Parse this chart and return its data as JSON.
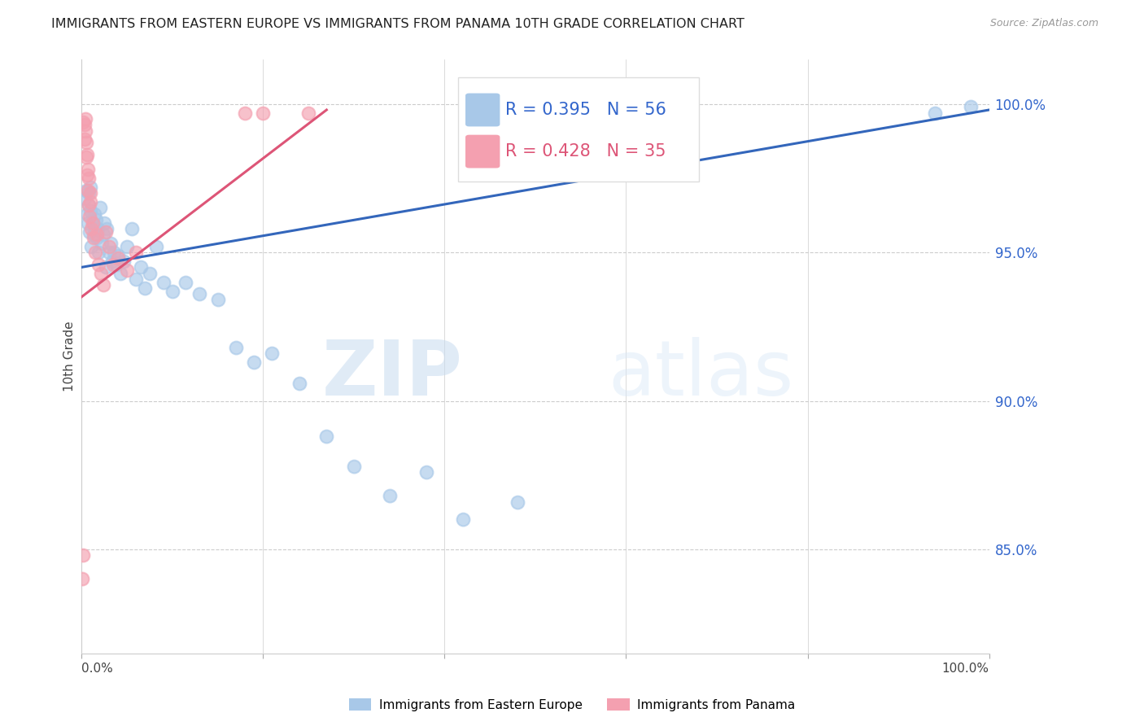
{
  "title": "IMMIGRANTS FROM EASTERN EUROPE VS IMMIGRANTS FROM PANAMA 10TH GRADE CORRELATION CHART",
  "source": "Source: ZipAtlas.com",
  "ylabel": "10th Grade",
  "legend_blue_r": "0.395",
  "legend_blue_n": "56",
  "legend_pink_r": "0.428",
  "legend_pink_n": "35",
  "legend_blue_label": "Immigrants from Eastern Europe",
  "legend_pink_label": "Immigrants from Panama",
  "ytick_labels": [
    "85.0%",
    "90.0%",
    "95.0%",
    "100.0%"
  ],
  "ytick_values": [
    0.85,
    0.9,
    0.95,
    1.0
  ],
  "xlim": [
    0.0,
    1.0
  ],
  "ylim": [
    0.815,
    1.015
  ],
  "blue_color": "#A8C8E8",
  "pink_color": "#F4A0B0",
  "blue_line_color": "#3366BB",
  "pink_line_color": "#DD5577",
  "grid_color": "#CCCCCC",
  "axis_label_color": "#3366CC",
  "title_color": "#222222",
  "watermark_zip": "ZIP",
  "watermark_atlas": "atlas",
  "blue_x": [
    0.003,
    0.005,
    0.006,
    0.007,
    0.008,
    0.008,
    0.009,
    0.01,
    0.01,
    0.011,
    0.012,
    0.013,
    0.014,
    0.015,
    0.016,
    0.017,
    0.018,
    0.019,
    0.02,
    0.022,
    0.024,
    0.025,
    0.027,
    0.028,
    0.03,
    0.032,
    0.034,
    0.036,
    0.038,
    0.04,
    0.043,
    0.046,
    0.05,
    0.055,
    0.06,
    0.065,
    0.07,
    0.075,
    0.082,
    0.09,
    0.1,
    0.115,
    0.13,
    0.15,
    0.17,
    0.19,
    0.21,
    0.24,
    0.27,
    0.3,
    0.34,
    0.38,
    0.42,
    0.48,
    0.94,
    0.98
  ],
  "blue_y": [
    0.968,
    0.971,
    0.963,
    0.96,
    0.966,
    0.97,
    0.957,
    0.964,
    0.972,
    0.952,
    0.96,
    0.956,
    0.963,
    0.958,
    0.961,
    0.955,
    0.958,
    0.95,
    0.965,
    0.953,
    0.956,
    0.96,
    0.945,
    0.958,
    0.95,
    0.953,
    0.947,
    0.95,
    0.946,
    0.949,
    0.943,
    0.947,
    0.952,
    0.958,
    0.941,
    0.945,
    0.938,
    0.943,
    0.952,
    0.94,
    0.937,
    0.94,
    0.936,
    0.934,
    0.918,
    0.913,
    0.916,
    0.906,
    0.888,
    0.878,
    0.868,
    0.876,
    0.86,
    0.866,
    0.997,
    0.999
  ],
  "pink_x": [
    0.001,
    0.002,
    0.002,
    0.003,
    0.003,
    0.004,
    0.004,
    0.005,
    0.005,
    0.006,
    0.006,
    0.007,
    0.007,
    0.008,
    0.008,
    0.009,
    0.01,
    0.01,
    0.011,
    0.012,
    0.013,
    0.015,
    0.017,
    0.019,
    0.021,
    0.024,
    0.027,
    0.03,
    0.035,
    0.04,
    0.05,
    0.06,
    0.18,
    0.2,
    0.25
  ],
  "pink_y": [
    0.84,
    0.848,
    0.994,
    0.988,
    0.993,
    0.991,
    0.995,
    0.982,
    0.987,
    0.976,
    0.983,
    0.971,
    0.978,
    0.966,
    0.975,
    0.962,
    0.967,
    0.97,
    0.958,
    0.96,
    0.955,
    0.95,
    0.956,
    0.946,
    0.943,
    0.939,
    0.957,
    0.952,
    0.946,
    0.948,
    0.944,
    0.95,
    0.997,
    0.997,
    0.997
  ],
  "blue_trendline_x": [
    0.0,
    1.0
  ],
  "blue_trendline_y": [
    0.945,
    0.998
  ],
  "pink_trendline_x": [
    0.0,
    0.27
  ],
  "pink_trendline_y": [
    0.935,
    0.998
  ]
}
